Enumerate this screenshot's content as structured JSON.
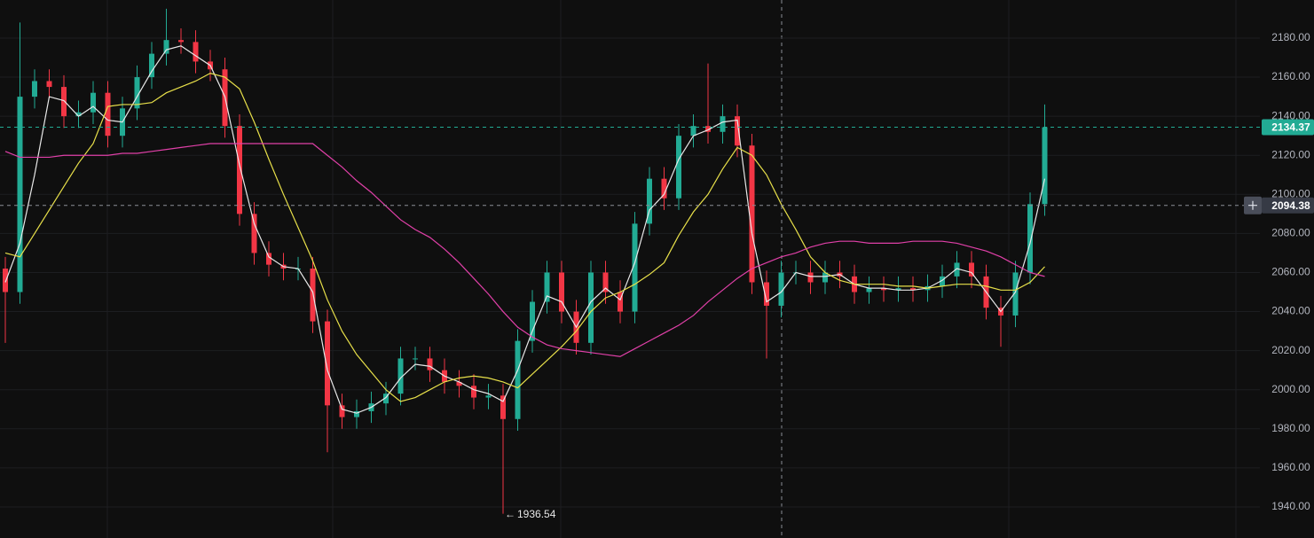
{
  "chart_data": {
    "type": "candlestick",
    "ylim": [
      1924.1,
      2199.5
    ],
    "yticks": [
      {
        "value": 1940,
        "label": "1940.00"
      },
      {
        "value": 1960,
        "label": "1960.00"
      },
      {
        "value": 1980,
        "label": "1980.00"
      },
      {
        "value": 2000,
        "label": "2000.00"
      },
      {
        "value": 2020,
        "label": "2020.00"
      },
      {
        "value": 2040,
        "label": "2040.00"
      },
      {
        "value": 2060,
        "label": "2060.00"
      },
      {
        "value": 2080,
        "label": "2080.00"
      },
      {
        "value": 2100,
        "label": "2100.00"
      },
      {
        "value": 2120,
        "label": "2120.00"
      },
      {
        "value": 2140,
        "label": "2140.00"
      },
      {
        "value": 2160,
        "label": "2160.00"
      },
      {
        "value": 2180,
        "label": "2180.00"
      }
    ],
    "grid": true,
    "up_color": "#22ab94",
    "down_color": "#f23645",
    "open": [
      2062,
      2050,
      2150,
      2158,
      2155,
      2140,
      2142,
      2152,
      2130,
      2144,
      2160,
      2172,
      2179,
      2178,
      2168,
      2164,
      2135,
      2090,
      2070,
      2064,
      2062,
      2062,
      2035,
      1992,
      1986,
      1989,
      1993,
      1998,
      2016,
      2016,
      2010,
      2004,
      2002,
      1996,
      1997,
      1985,
      2025,
      2045,
      2060,
      2040,
      2024,
      2060,
      2050,
      2040,
      2085,
      2108,
      2098,
      2130,
      2135,
      2132,
      2140,
      2125,
      2055,
      2043,
      2060,
      2060,
      2055,
      2060,
      2058,
      2050,
      2052,
      2051,
      2052,
      2051,
      2053,
      2058,
      2065,
      2058,
      2042,
      2038,
      2060,
      2095
    ],
    "high": [
      2068,
      2188,
      2164,
      2164,
      2161,
      2148,
      2158,
      2158,
      2150,
      2166,
      2178,
      2195,
      2185,
      2184,
      2174,
      2170,
      2141,
      2096,
      2076,
      2070,
      2068,
      2068,
      2041,
      1998,
      1995,
      1999,
      2004,
      2022,
      2022,
      2022,
      2016,
      2010,
      2008,
      2003,
      2003,
      2031,
      2051,
      2066,
      2066,
      2046,
      2066,
      2066,
      2056,
      2091,
      2114,
      2114,
      2136,
      2141,
      2167,
      2146,
      2146,
      2131,
      2061,
      2066,
      2066,
      2066,
      2066,
      2066,
      2064,
      2058,
      2058,
      2058,
      2058,
      2059,
      2064,
      2071,
      2071,
      2064,
      2048,
      2066,
      2101,
      2146
    ],
    "low": [
      2024,
      2044,
      2144,
      2149,
      2134,
      2134,
      2136,
      2124,
      2124,
      2138,
      2154,
      2166,
      2172,
      2162,
      2158,
      2129,
      2084,
      2064,
      2058,
      2056,
      2056,
      2029,
      1968,
      1980,
      1980,
      1983,
      1987,
      1992,
      2010,
      2004,
      1998,
      1996,
      1990,
      1990,
      1936.54,
      1979,
      2019,
      2039,
      2034,
      2018,
      2018,
      2044,
      2034,
      2034,
      2079,
      2092,
      2092,
      2124,
      2126,
      2126,
      2119,
      2049,
      2016,
      2037,
      2054,
      2049,
      2049,
      2052,
      2044,
      2044,
      2045,
      2045,
      2045,
      2045,
      2047,
      2052,
      2052,
      2036,
      2022,
      2032,
      2054,
      2089
    ],
    "close": [
      2050,
      2150,
      2158,
      2155,
      2140,
      2142,
      2152,
      2130,
      2144,
      2160,
      2172,
      2179,
      2178,
      2168,
      2164,
      2135,
      2090,
      2070,
      2064,
      2062,
      2062,
      2035,
      1992,
      1986,
      1989,
      1993,
      1998,
      2016,
      2016,
      2010,
      2004,
      2002,
      1996,
      1997,
      1985,
      2025,
      2045,
      2060,
      2040,
      2024,
      2060,
      2050,
      2040,
      2085,
      2108,
      2098,
      2130,
      2135,
      2132,
      2140,
      2125,
      2055,
      2043,
      2060,
      2060,
      2055,
      2060,
      2058,
      2050,
      2052,
      2051,
      2052,
      2051,
      2053,
      2058,
      2065,
      2058,
      2042,
      2038,
      2060,
      2095,
      2134.37
    ],
    "moving_averages": [
      {
        "color": "#e8e8e8",
        "values": [
          2055,
          2075,
          2110,
          2150,
          2148,
          2140,
          2145,
          2138,
          2137,
          2150,
          2163,
          2174,
          2176,
          2171,
          2166,
          2150,
          2115,
          2085,
          2068,
          2063,
          2062,
          2050,
          2010,
          1990,
          1988,
          1991,
          1996,
          2006,
          2013,
          2012,
          2007,
          2004,
          2000,
          1998,
          1994,
          2010,
          2030,
          2048,
          2045,
          2032,
          2045,
          2052,
          2046,
          2065,
          2092,
          2100,
          2118,
          2130,
          2133,
          2137,
          2138,
          2080,
          2045,
          2050,
          2060,
          2058,
          2058,
          2059,
          2054,
          2052,
          2052,
          2051,
          2051,
          2052,
          2056,
          2062,
          2060,
          2050,
          2040,
          2050,
          2075,
          2108
        ]
      },
      {
        "color": "#e8e04a",
        "values": [
          2070,
          2068,
          2080,
          2092,
          2104,
          2116,
          2126,
          2145,
          2146,
          2146,
          2147,
          2152,
          2155,
          2158,
          2162,
          2160,
          2154,
          2137,
          2118,
          2100,
          2083,
          2066,
          2046,
          2030,
          2018,
          2009,
          2000,
          1994,
          1996,
          2000,
          2004,
          2006,
          2007,
          2006,
          2004,
          2001,
          2008,
          2015,
          2022,
          2030,
          2040,
          2047,
          2050,
          2054,
          2059,
          2065,
          2079,
          2091,
          2100,
          2113,
          2124,
          2120,
          2110,
          2095,
          2082,
          2068,
          2060,
          2056,
          2054,
          2054,
          2054,
          2053,
          2053,
          2052,
          2053,
          2054,
          2054,
          2053,
          2051,
          2051,
          2055,
          2063
        ]
      },
      {
        "color": "#e040a8",
        "values": [
          2122,
          2119,
          2119,
          2119,
          2120,
          2120,
          2120,
          2120,
          2121,
          2121,
          2122,
          2123,
          2124,
          2125,
          2126,
          2126,
          2126,
          2126,
          2126,
          2126,
          2126,
          2126,
          2120,
          2114,
          2107,
          2101,
          2094,
          2087,
          2082,
          2078,
          2072,
          2065,
          2057,
          2049,
          2040,
          2032,
          2027,
          2023,
          2021,
          2020,
          2019,
          2018,
          2017,
          2021,
          2025,
          2029,
          2033,
          2038,
          2045,
          2051,
          2057,
          2062,
          2065,
          2068,
          2070,
          2073,
          2075,
          2076,
          2076,
          2075,
          2075,
          2075,
          2076,
          2076,
          2076,
          2075,
          2073,
          2071,
          2068,
          2064,
          2060,
          2058
        ]
      }
    ],
    "crosshair_price": 2094.38
  }
}
